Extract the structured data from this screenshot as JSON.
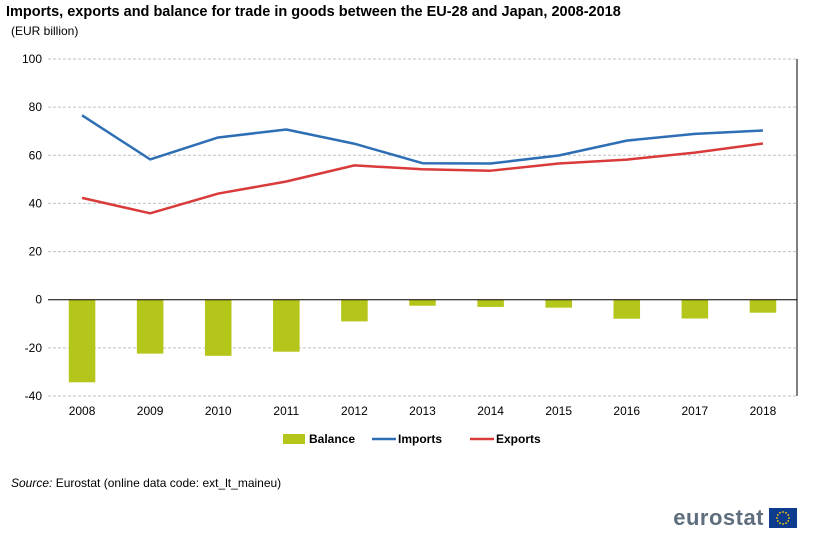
{
  "title": "Imports, exports and balance for trade in goods between the EU-28 and Japan, 2008-2018",
  "subtitle": "(EUR billion)",
  "source_label": "Source:",
  "source_text": "Eurostat (online data code: ext_lt_maineu)",
  "logo": {
    "text": "eurostat",
    "icon": "eu-flag-icon"
  },
  "colors": {
    "balance": "#b5c61a",
    "imports": "#2e6eb5",
    "exports": "#d93a3a",
    "grid": "#c0c0c0"
  },
  "chart_data": {
    "type": "bar+line",
    "categories": [
      "2008",
      "2009",
      "2010",
      "2011",
      "2012",
      "2013",
      "2014",
      "2015",
      "2016",
      "2017",
      "2018"
    ],
    "ylim": [
      -40,
      100
    ],
    "yticks": [
      -40,
      -20,
      0,
      20,
      40,
      60,
      80,
      100
    ],
    "grid": true,
    "legend_position": "bottom",
    "series": [
      {
        "name": "Balance",
        "kind": "bar",
        "color": "#b5c61a",
        "values": [
          -34.3,
          -22.4,
          -23.3,
          -21.6,
          -9.0,
          -2.5,
          -3.0,
          -3.3,
          -7.9,
          -7.8,
          -5.4
        ]
      },
      {
        "name": "Imports",
        "kind": "line",
        "color": "#2e6eb5",
        "values": [
          76.6,
          58.3,
          67.4,
          70.7,
          64.8,
          56.7,
          56.6,
          59.9,
          66.1,
          68.9,
          70.3
        ]
      },
      {
        "name": "Exports",
        "kind": "line",
        "color": "#d93a3a",
        "values": [
          42.3,
          35.9,
          44.1,
          49.1,
          55.8,
          54.2,
          53.6,
          56.6,
          58.2,
          61.1,
          64.9
        ]
      }
    ]
  }
}
